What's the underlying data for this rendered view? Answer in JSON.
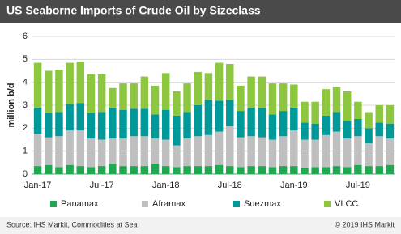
{
  "chart_data": {
    "type": "stacked-bar",
    "title": "US Seaborne Imports of Crude Oil by Sizeclass",
    "y_label": "million b/d",
    "categories": [
      "Jan-17",
      null,
      null,
      null,
      null,
      null,
      "Jul-17",
      null,
      null,
      null,
      null,
      null,
      "Jan-18",
      null,
      null,
      null,
      null,
      null,
      "Jul-18",
      null,
      null,
      null,
      null,
      null,
      "Jan-19",
      null,
      null,
      null,
      null,
      null,
      "Jul-19",
      null,
      null,
      null
    ],
    "series": [
      {
        "name": "Panamax",
        "color": "#1fa84f",
        "values": [
          0.35,
          0.4,
          0.3,
          0.4,
          0.35,
          0.3,
          0.35,
          0.45,
          0.35,
          0.35,
          0.35,
          0.45,
          0.35,
          0.3,
          0.35,
          0.35,
          0.35,
          0.4,
          0.35,
          0.3,
          0.35,
          0.35,
          0.3,
          0.35,
          0.35,
          0.25,
          0.3,
          0.3,
          0.35,
          0.3,
          0.4,
          0.35,
          0.35,
          0.4
        ]
      },
      {
        "name": "Aframax",
        "color": "#bfbfbf",
        "values": [
          1.4,
          1.2,
          1.35,
          1.5,
          1.55,
          1.25,
          1.15,
          1.1,
          1.2,
          1.3,
          1.3,
          1.1,
          1.15,
          0.95,
          1.2,
          1.3,
          1.35,
          1.45,
          1.75,
          1.3,
          1.3,
          1.25,
          1.2,
          1.3,
          1.55,
          1.25,
          1.2,
          1.4,
          1.5,
          1.25,
          1.25,
          1.0,
          1.3,
          1.15
        ]
      },
      {
        "name": "Suezmax",
        "color": "#00999a",
        "values": [
          1.15,
          1.05,
          1.05,
          1.15,
          1.2,
          1.1,
          1.2,
          1.35,
          1.25,
          1.2,
          1.2,
          1.05,
          1.3,
          1.3,
          1.15,
          1.35,
          1.55,
          1.35,
          1.15,
          1.15,
          1.25,
          1.3,
          1.1,
          1.1,
          1.0,
          0.75,
          0.7,
          0.85,
          0.85,
          0.75,
          0.75,
          0.65,
          0.6,
          0.65
        ]
      },
      {
        "name": "VLCC",
        "color": "#8dc63f",
        "values": [
          1.95,
          1.85,
          1.85,
          1.8,
          1.8,
          1.7,
          1.65,
          0.85,
          1.15,
          1.1,
          1.4,
          1.25,
          1.6,
          1.05,
          1.25,
          1.45,
          1.15,
          1.65,
          1.55,
          1.1,
          1.35,
          1.35,
          1.35,
          1.2,
          1.0,
          0.9,
          0.95,
          1.15,
          1.1,
          1.3,
          0.75,
          0.7,
          0.75,
          0.8
        ]
      }
    ],
    "ylim": [
      0,
      6
    ],
    "yticks": [
      0,
      1,
      2,
      3,
      4,
      5,
      6
    ],
    "grid": true,
    "legend": "bottom",
    "source": "Source: IHS Markit, Commodities at Sea",
    "copyright": "© 2019 IHS Markit"
  }
}
